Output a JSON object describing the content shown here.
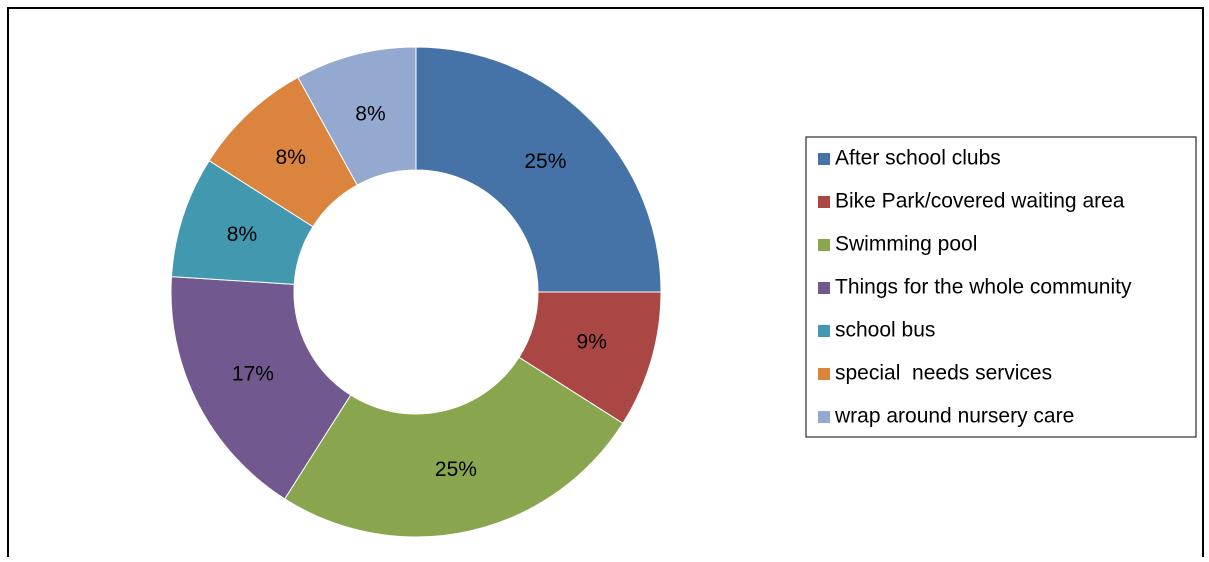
{
  "chart_data": {
    "type": "donut",
    "categories": [
      "After school clubs",
      "Bike Park/covered waiting area",
      "Swimming pool",
      "Things for the whole community",
      "school bus",
      "special  needs services",
      "wrap around nursery care"
    ],
    "values": [
      25,
      9,
      25,
      17,
      8,
      8,
      8
    ],
    "value_labels": [
      "25%",
      "9%",
      "25%",
      "17%",
      "8%",
      "8%",
      "8%"
    ],
    "colors": [
      "#4572a7",
      "#aa4643",
      "#89a54e",
      "#71588f",
      "#4198af",
      "#db843d",
      "#93a9cf"
    ],
    "legend": "right"
  }
}
